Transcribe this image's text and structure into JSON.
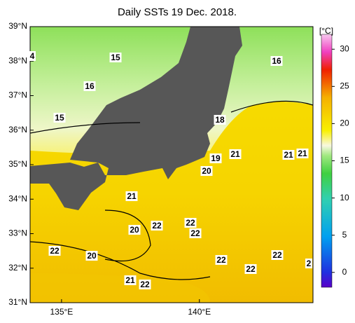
{
  "title": "Daily SSTs 19 Dec. 2018.",
  "map": {
    "lon_lim": [
      133.86,
      144.12
    ],
    "lat_lim": [
      31,
      39
    ],
    "lon_ticks": [
      {
        "value": 135,
        "label": "135°E"
      },
      {
        "value": 140,
        "label": "140°E"
      }
    ],
    "lat_ticks": [
      {
        "value": 39,
        "label": "39°N"
      },
      {
        "value": 38,
        "label": "38°N"
      },
      {
        "value": 37,
        "label": "37°N"
      },
      {
        "value": 36,
        "label": "36°N"
      },
      {
        "value": 35,
        "label": "35°N"
      },
      {
        "value": 34,
        "label": "34°N"
      },
      {
        "value": 33,
        "label": "33°N"
      },
      {
        "value": 32,
        "label": "32°N"
      },
      {
        "value": 31,
        "label": "31°N"
      }
    ],
    "contour_labels": [
      "4",
      "15",
      "16",
      "15",
      "16",
      "18",
      "19",
      "21",
      "21",
      "21",
      "20",
      "21",
      "20",
      "22",
      "22",
      "22",
      "22",
      "20",
      "22",
      "22",
      "22",
      "2",
      "21",
      "22"
    ]
  },
  "colorbar": {
    "unit": "[°C]",
    "lim": [
      -2,
      32
    ],
    "ticks": [
      0,
      5,
      10,
      15,
      20,
      25,
      30
    ]
  }
}
